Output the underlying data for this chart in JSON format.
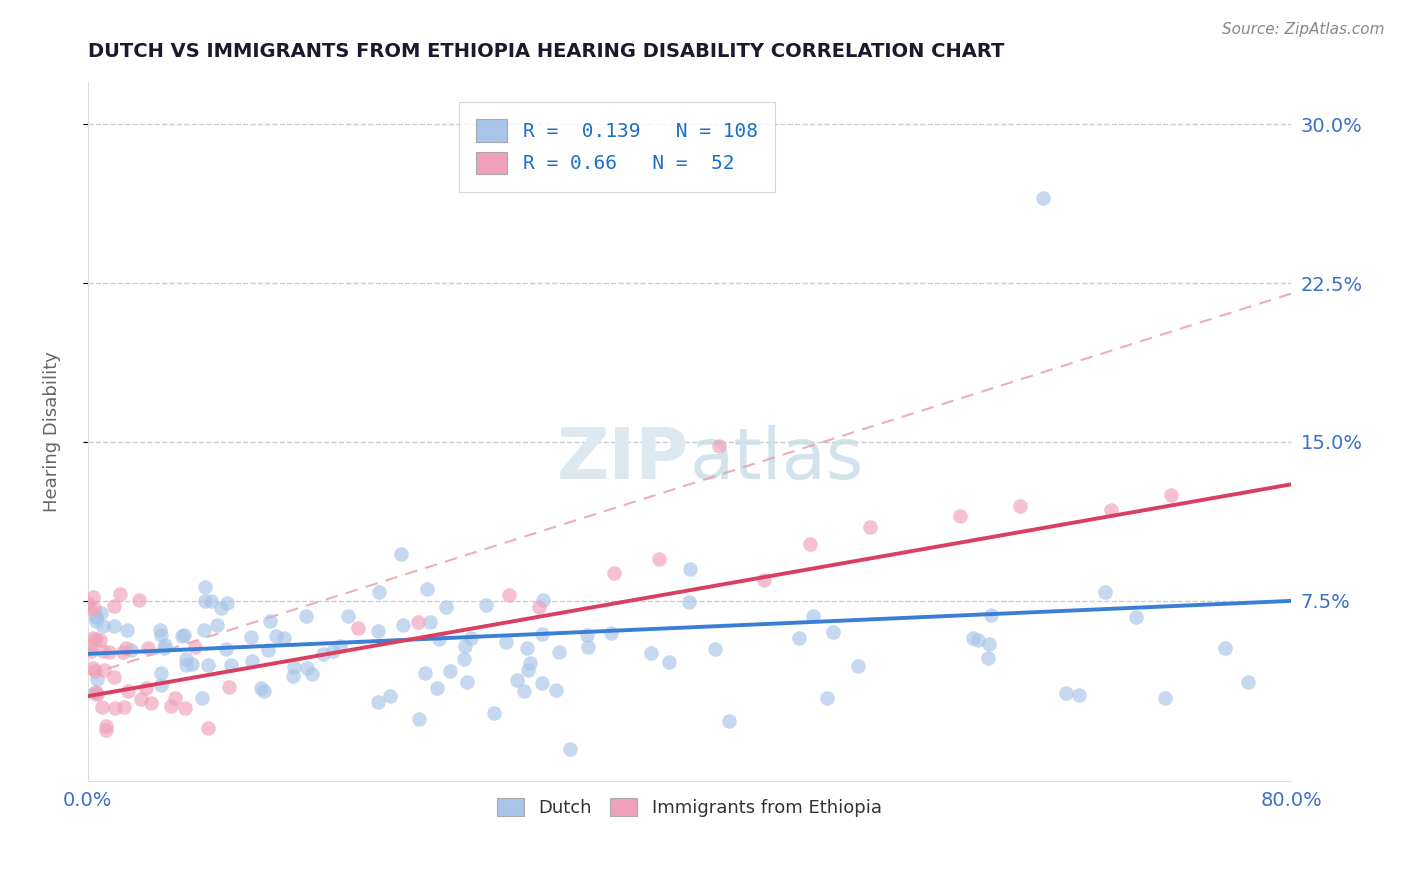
{
  "title": "DUTCH VS IMMIGRANTS FROM ETHIOPIA HEARING DISABILITY CORRELATION CHART",
  "source_text": "Source: ZipAtlas.com",
  "ylabel": "Hearing Disability",
  "x_min": 0.0,
  "x_max": 0.8,
  "y_min": -0.01,
  "y_max": 0.32,
  "x_tick_labels": [
    "0.0%",
    "80.0%"
  ],
  "y_ticks": [
    0.075,
    0.15,
    0.225,
    0.3
  ],
  "y_tick_labels": [
    "7.5%",
    "15.0%",
    "22.5%",
    "30.0%"
  ],
  "dutch_R": 0.139,
  "dutch_N": 108,
  "ethiopia_R": 0.66,
  "ethiopia_N": 52,
  "dutch_color": "#a8c4e8",
  "ethiopia_color": "#f0a0b8",
  "dutch_line_color": "#3a7fd5",
  "ethiopia_line_color": "#d94060",
  "dash_line_color": "#e8a0b0",
  "legend_text_color": "#1a6fcc",
  "title_color": "#1a1a2e",
  "axis_label_color": "#3a6fcc",
  "background_color": "#ffffff",
  "grid_color": "#b0b8c8",
  "watermark_color": "#dde8f0"
}
